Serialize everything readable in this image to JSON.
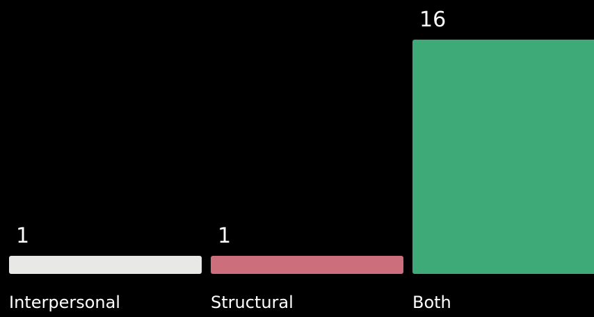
{
  "chart_data": {
    "type": "bar",
    "categories": [
      "Interpersonal",
      "Structural",
      "Both"
    ],
    "values": [
      1,
      1,
      16
    ],
    "value_labels": [
      "1",
      "1",
      "16"
    ],
    "colors": [
      "#e8e8e6",
      "#cd6e7c",
      "#3daa78"
    ],
    "background": "#000000",
    "text_color": "#ffffff",
    "ylim": [
      0,
      16
    ],
    "grid": false,
    "legend": "none",
    "title": "",
    "xlabel": "",
    "ylabel": ""
  }
}
